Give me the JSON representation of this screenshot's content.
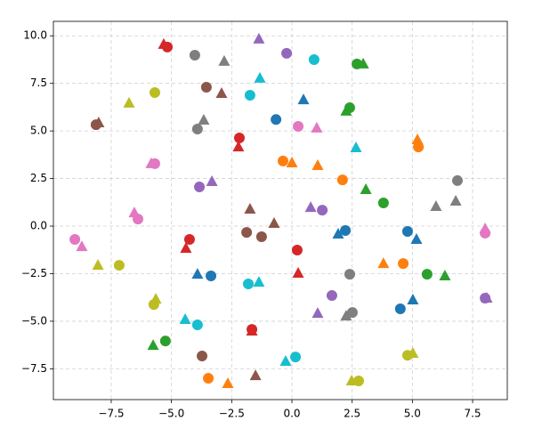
{
  "chart_data": {
    "type": "scatter",
    "grid": true,
    "xlim": [
      -9.9,
      8.94
    ],
    "ylim": [
      -9.12,
      10.76
    ],
    "xticks": [
      {
        "value": -7.5,
        "label": "−7.5"
      },
      {
        "value": -5,
        "label": "−5.0"
      },
      {
        "value": -2.5,
        "label": "−2.5"
      },
      {
        "value": 0,
        "label": "0.0"
      },
      2.5,
      {
        "value": 5,
        "label": "5.0"
      },
      7.5
    ],
    "yticks": [
      {
        "value": -7.5,
        "label": "−7.5"
      },
      {
        "value": -5,
        "label": "−5.0"
      },
      {
        "value": -2.5,
        "label": "−2.5"
      },
      {
        "value": 0,
        "label": "0.0"
      },
      2.5,
      {
        "value": 5,
        "label": "5.0"
      },
      7.5,
      {
        "value": 10,
        "label": "10.0"
      }
    ],
    "series": [
      {
        "color": "#1f77b4",
        "marker": "circle",
        "x": [
          -0.66,
          2.22,
          4.8,
          4.5,
          -3.36
        ],
        "y": [
          5.6,
          -0.23,
          -0.28,
          -4.35,
          -2.62
        ]
      },
      {
        "color": "#1f77b4",
        "marker": "triangle",
        "x": [
          0.48,
          1.92,
          5.17,
          5.02,
          -3.92
        ],
        "y": [
          6.64,
          -0.42,
          -0.7,
          -3.88,
          -2.53
        ]
      },
      {
        "color": "#ff7f0e",
        "marker": "circle",
        "x": [
          -0.37,
          2.1,
          5.25,
          4.62,
          -3.47
        ],
        "y": [
          3.42,
          2.43,
          4.16,
          -1.97,
          -8.0
        ]
      },
      {
        "color": "#ff7f0e",
        "marker": "triangle",
        "x": [
          0.0,
          1.07,
          5.21,
          3.8,
          -2.66
        ],
        "y": [
          3.32,
          3.18,
          4.54,
          -1.97,
          -8.28
        ]
      },
      {
        "color": "#2ca02c",
        "marker": "circle",
        "x": [
          2.7,
          2.4,
          3.8,
          5.61,
          -5.25
        ],
        "y": [
          8.52,
          6.22,
          1.22,
          -2.53,
          -6.04
        ]
      },
      {
        "color": "#2ca02c",
        "marker": "triangle",
        "x": [
          2.96,
          2.25,
          3.07,
          6.35,
          -5.76
        ],
        "y": [
          8.52,
          6.04,
          1.92,
          -2.62,
          -6.27
        ]
      },
      {
        "color": "#d62728",
        "marker": "circle",
        "x": [
          -5.17,
          -2.18,
          -4.25,
          0.22,
          -1.66
        ],
        "y": [
          9.41,
          4.63,
          -0.7,
          -1.26,
          -5.43
        ]
      },
      {
        "color": "#d62728",
        "marker": "triangle",
        "x": [
          -5.32,
          -2.22,
          -4.4,
          0.26,
          -1.66
        ],
        "y": [
          9.55,
          4.16,
          -1.17,
          -2.48,
          -5.52
        ]
      },
      {
        "color": "#9467bd",
        "marker": "circle",
        "x": [
          -0.22,
          -3.84,
          1.26,
          1.66,
          8.02
        ],
        "y": [
          9.08,
          2.06,
          0.84,
          -3.65,
          -3.79
        ]
      },
      {
        "color": "#9467bd",
        "marker": "triangle",
        "x": [
          -1.37,
          -3.32,
          0.78,
          1.07,
          8.09
        ],
        "y": [
          9.83,
          2.34,
          0.98,
          -4.59,
          -3.79
        ]
      },
      {
        "color": "#8c564b",
        "marker": "circle",
        "x": [
          -8.13,
          -3.55,
          -1.88,
          -1.26,
          -3.73
        ],
        "y": [
          5.33,
          7.3,
          -0.33,
          -0.56,
          -6.83
        ]
      },
      {
        "color": "#8c564b",
        "marker": "triangle",
        "x": [
          -8.02,
          -2.92,
          -1.74,
          -0.74,
          -1.51
        ],
        "y": [
          5.43,
          6.97,
          0.89,
          0.14,
          -7.86
        ]
      },
      {
        "color": "#e377c2",
        "marker": "circle",
        "x": [
          0.26,
          -5.69,
          -6.39,
          -9.01,
          8.02
        ],
        "y": [
          5.24,
          3.28,
          0.37,
          -0.7,
          -0.37
        ]
      },
      {
        "color": "#e377c2",
        "marker": "triangle",
        "x": [
          1.03,
          -5.84,
          -6.54,
          -8.72,
          8.02
        ],
        "y": [
          5.15,
          3.28,
          0.7,
          -1.08,
          -0.14
        ]
      },
      {
        "color": "#7f7f7f",
        "marker": "circle",
        "x": [
          -4.03,
          -3.92,
          6.87,
          2.4,
          2.51
        ],
        "y": [
          8.98,
          5.1,
          2.39,
          -2.53,
          -4.54
        ]
      },
      {
        "color": "#7f7f7f",
        "marker": "triangle",
        "x": [
          -2.81,
          -3.66,
          5.98,
          6.8,
          2.25
        ],
        "y": [
          8.66,
          5.57,
          1.03,
          1.31,
          -4.73
        ]
      },
      {
        "color": "#bcbd22",
        "marker": "circle",
        "x": [
          -5.69,
          -7.17,
          -5.73,
          2.77,
          4.8
        ],
        "y": [
          7.02,
          -2.06,
          -4.12,
          -8.14,
          -6.79
        ]
      },
      {
        "color": "#bcbd22",
        "marker": "triangle",
        "x": [
          -6.76,
          -8.05,
          -5.65,
          2.48,
          5.02
        ],
        "y": [
          6.46,
          -2.06,
          -3.84,
          -8.14,
          -6.69
        ]
      },
      {
        "color": "#17becf",
        "marker": "circle",
        "x": [
          0.92,
          -1.74,
          -1.81,
          -3.92,
          0.15
        ],
        "y": [
          8.75,
          6.88,
          -3.04,
          -5.19,
          -6.88
        ]
      },
      {
        "color": "#17becf",
        "marker": "triangle",
        "x": [
          -1.33,
          2.66,
          -1.37,
          -4.43,
          -0.26
        ],
        "y": [
          7.77,
          4.12,
          -2.95,
          -4.91,
          -7.11
        ]
      }
    ]
  }
}
